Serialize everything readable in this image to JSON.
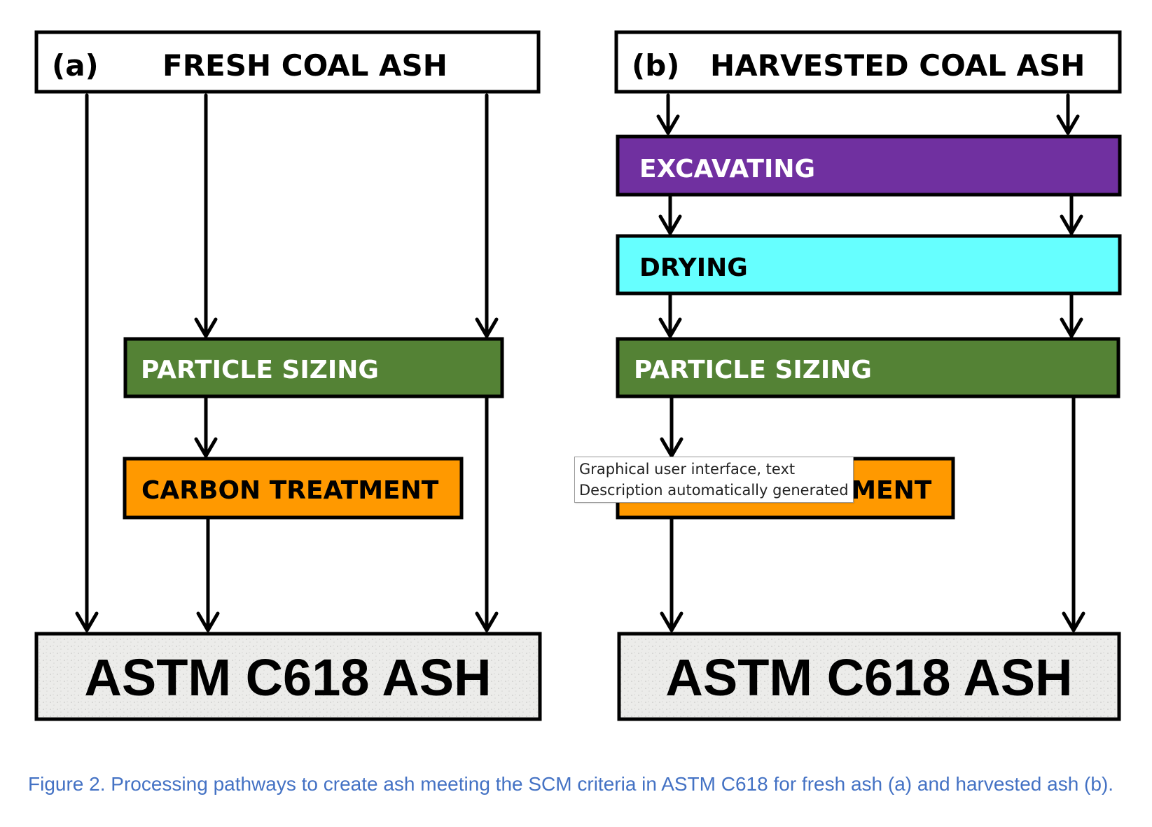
{
  "panel_a": {
    "tag": "(a)",
    "title": "FRESH COAL ASH",
    "steps": [
      "PARTICLE SIZING",
      "CARBON TREATMENT"
    ],
    "output": "ASTM C618 ASH"
  },
  "panel_b": {
    "tag": "(b)",
    "title": "HARVESTED COAL ASH",
    "steps": [
      "EXCAVATING",
      "DRYING",
      "PARTICLE SIZING",
      "CARBON TREATMENT"
    ],
    "output": "ASTM C618 ASH"
  },
  "tooltip": {
    "line1": "Graphical user interface, text",
    "line2": "Description automatically generated"
  },
  "caption": "Figure 2. Processing pathways to create ash meeting the SCM criteria in ASTM C618 for fresh ash (a) and harvested ash (b).",
  "colors": {
    "particle_sizing": "#548235",
    "carbon_treatment": "#FF9900",
    "excavating": "#7030A0",
    "drying": "#66FFFF",
    "output_fill": "#e9e9e6",
    "caption": "#4472C4"
  }
}
